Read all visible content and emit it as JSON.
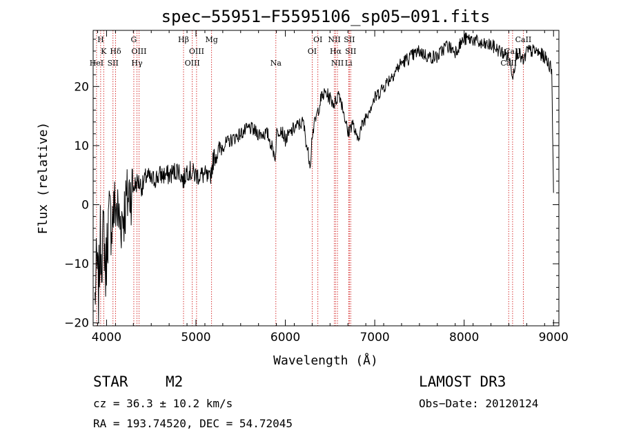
{
  "chart_data": {
    "type": "line",
    "title": "spec−55951−F5595106_sp05−091.fits",
    "xlabel": "Wavelength (Å)",
    "ylabel": "Flux (relative)",
    "xlim": [
      3850,
      9060
    ],
    "ylim": [
      -20.5,
      29.5
    ],
    "x_ticks": [
      4000,
      5000,
      6000,
      7000,
      8000,
      9000
    ],
    "y_ticks": [
      -20,
      -10,
      0,
      10,
      20
    ],
    "x_tick_labels": [
      "4000",
      "5000",
      "6000",
      "7000",
      "8000",
      "9000"
    ],
    "y_tick_labels": [
      "−20",
      "−10",
      "0",
      "10",
      "20"
    ],
    "series": [
      {
        "name": "flux",
        "x": [
          3870,
          3890,
          3910,
          3930,
          3950,
          3970,
          3990,
          4010,
          4030,
          4050,
          4100,
          4150,
          4200,
          4250,
          4300,
          4350,
          4400,
          4450,
          4500,
          4600,
          4700,
          4800,
          4861,
          4900,
          5000,
          5100,
          5150,
          5200,
          5250,
          5300,
          5400,
          5500,
          5600,
          5700,
          5800,
          5890,
          5900,
          5950,
          6000,
          6100,
          6200,
          6250,
          6280,
          6300,
          6350,
          6400,
          6450,
          6500,
          6550,
          6600,
          6650,
          6700,
          6750,
          6800,
          6850,
          6900,
          7000,
          7100,
          7200,
          7300,
          7400,
          7500,
          7600,
          7700,
          7800,
          7900,
          8000,
          8100,
          8200,
          8300,
          8400,
          8500,
          8545,
          8580,
          8600,
          8665,
          8700,
          8800,
          8900,
          8980,
          9000
        ],
        "y": [
          -16,
          -10,
          -15,
          -6,
          -8,
          -4,
          -12,
          -5,
          -2,
          -3,
          0,
          -3,
          -1,
          2,
          3,
          4,
          3,
          5,
          4,
          5,
          5,
          6,
          4,
          6,
          5,
          5,
          4,
          8,
          9,
          10,
          11,
          12,
          13,
          12,
          12,
          8,
          12,
          13,
          11,
          13,
          14,
          9,
          7,
          12,
          15,
          18,
          19,
          18,
          17,
          19,
          16,
          12,
          14,
          11,
          13,
          15,
          18,
          20,
          22,
          24,
          25,
          26,
          25,
          25,
          27,
          26,
          28,
          28,
          27,
          27,
          26,
          25,
          22,
          25,
          26,
          24,
          26,
          26,
          25,
          23,
          2
        ]
      }
    ],
    "spectral_lines": [
      {
        "name": "H",
        "wavelength": 3934,
        "row": 0
      },
      {
        "name": "K",
        "wavelength": 3968,
        "row": 1
      },
      {
        "name": "HeI",
        "wavelength": 3888,
        "row": 2
      },
      {
        "name": "SII",
        "wavelength": 4072,
        "row": 2
      },
      {
        "name": "Hδ",
        "wavelength": 4101,
        "row": 1
      },
      {
        "name": "G",
        "wavelength": 4305,
        "row": 0
      },
      {
        "name": "OIII",
        "wavelength": 4363,
        "row": 1
      },
      {
        "name": "Hγ",
        "wavelength": 4340,
        "row": 2
      },
      {
        "name": "Hβ",
        "wavelength": 4861,
        "row": 0
      },
      {
        "name": "OIII",
        "wavelength": 4959,
        "row": 2
      },
      {
        "name": "OIII",
        "wavelength": 5007,
        "row": 1
      },
      {
        "name": "Mg",
        "wavelength": 5175,
        "row": 0
      },
      {
        "name": "Na",
        "wavelength": 5894,
        "row": 2
      },
      {
        "name": "OI",
        "wavelength": 6300,
        "row": 1
      },
      {
        "name": "OI",
        "wavelength": 6364,
        "row": 0
      },
      {
        "name": "NII",
        "wavelength": 6548,
        "row": 0
      },
      {
        "name": "Hα",
        "wavelength": 6563,
        "row": 1
      },
      {
        "name": "NII",
        "wavelength": 6583,
        "row": 2
      },
      {
        "name": "SII",
        "wavelength": 6716,
        "row": 0
      },
      {
        "name": "SII",
        "wavelength": 6731,
        "row": 1
      },
      {
        "name": "Li",
        "wavelength": 6708,
        "row": 2
      },
      {
        "name": "CaII",
        "wavelength": 8662,
        "row": 0
      },
      {
        "name": "CaII",
        "wavelength": 8542,
        "row": 1
      },
      {
        "name": "CaII",
        "wavelength": 8498,
        "row": 2
      }
    ]
  },
  "info": {
    "class": "STAR",
    "subclass": "M2",
    "survey": "LAMOST DR3",
    "cz": "cz = 36.3 ± 10.2 km/s",
    "obs_date": "Obs−Date: 20120124",
    "coords": "RA = 193.74520, DEC =  54.72045"
  },
  "colors": {
    "line": "#000000",
    "marker": "#cc0000",
    "background": "#ffffff"
  }
}
